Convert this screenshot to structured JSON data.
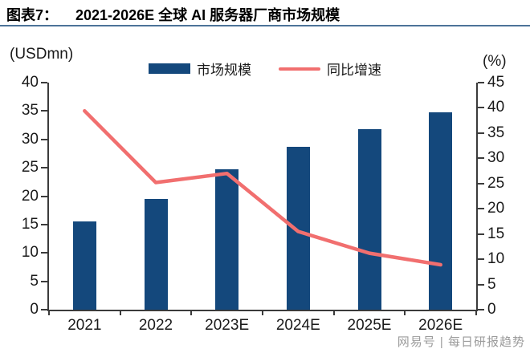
{
  "page": {
    "figure_label": "图表7：",
    "title": "2021-2026E 全球 AI 服务器厂商市场规模",
    "watermark": "网易号 | 每日研报趋势"
  },
  "chart_data": {
    "type": "bar",
    "title": "2021-2026E 全球 AI 服务器厂商市场规模",
    "categories": [
      "2021",
      "2022",
      "2023E",
      "2024E",
      "2025E",
      "2026E"
    ],
    "series": [
      {
        "name": "市场规模",
        "type": "bar",
        "axis": "left",
        "color": "#14487C",
        "values": [
          15.5,
          19.5,
          24.8,
          28.7,
          31.8,
          34.7
        ]
      },
      {
        "name": "同比增速",
        "type": "line",
        "axis": "right",
        "color": "#F16F6F",
        "values": [
          39.4,
          25.2,
          27.0,
          15.5,
          11.2,
          8.9
        ]
      }
    ],
    "left_axis": {
      "label": "(USDmn)",
      "min": 0,
      "max": 40,
      "step": 5
    },
    "right_axis": {
      "label": "(%)",
      "min": 0,
      "max": 45,
      "step": 5
    },
    "grid": false,
    "legend_position": "top-center"
  },
  "colors": {
    "bar": "#14487C",
    "line": "#F16F6F",
    "title_underline": "#4C7398",
    "axis": "#3B3B3B",
    "text": "#1A1A1A",
    "watermark": "#9B9B9B"
  }
}
